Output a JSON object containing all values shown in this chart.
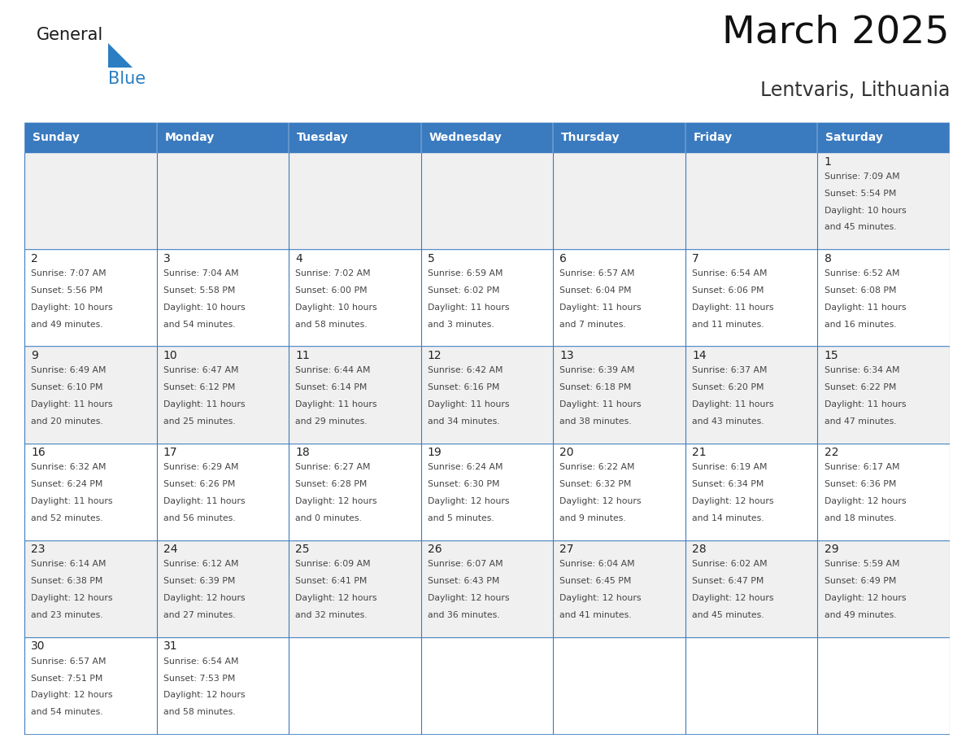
{
  "title": "March 2025",
  "subtitle": "Lentvaris, Lithuania",
  "days_of_week": [
    "Sunday",
    "Monday",
    "Tuesday",
    "Wednesday",
    "Thursday",
    "Friday",
    "Saturday"
  ],
  "header_bg": "#3a7abf",
  "header_text": "#ffffff",
  "row_bg_odd": "#f0f0f0",
  "row_bg_even": "#ffffff",
  "border_color": "#3a7abf",
  "day_num_color": "#222222",
  "text_color": "#444444",
  "logo_general_color": "#1a1a1a",
  "logo_blue_color": "#2b7ec1",
  "cal_data": [
    {
      "day": 1,
      "col": 6,
      "row": 0,
      "sunrise": "7:09 AM",
      "sunset": "5:54 PM",
      "daylight": "10 hours and 45 minutes."
    },
    {
      "day": 2,
      "col": 0,
      "row": 1,
      "sunrise": "7:07 AM",
      "sunset": "5:56 PM",
      "daylight": "10 hours and 49 minutes."
    },
    {
      "day": 3,
      "col": 1,
      "row": 1,
      "sunrise": "7:04 AM",
      "sunset": "5:58 PM",
      "daylight": "10 hours and 54 minutes."
    },
    {
      "day": 4,
      "col": 2,
      "row": 1,
      "sunrise": "7:02 AM",
      "sunset": "6:00 PM",
      "daylight": "10 hours and 58 minutes."
    },
    {
      "day": 5,
      "col": 3,
      "row": 1,
      "sunrise": "6:59 AM",
      "sunset": "6:02 PM",
      "daylight": "11 hours and 3 minutes."
    },
    {
      "day": 6,
      "col": 4,
      "row": 1,
      "sunrise": "6:57 AM",
      "sunset": "6:04 PM",
      "daylight": "11 hours and 7 minutes."
    },
    {
      "day": 7,
      "col": 5,
      "row": 1,
      "sunrise": "6:54 AM",
      "sunset": "6:06 PM",
      "daylight": "11 hours and 11 minutes."
    },
    {
      "day": 8,
      "col": 6,
      "row": 1,
      "sunrise": "6:52 AM",
      "sunset": "6:08 PM",
      "daylight": "11 hours and 16 minutes."
    },
    {
      "day": 9,
      "col": 0,
      "row": 2,
      "sunrise": "6:49 AM",
      "sunset": "6:10 PM",
      "daylight": "11 hours and 20 minutes."
    },
    {
      "day": 10,
      "col": 1,
      "row": 2,
      "sunrise": "6:47 AM",
      "sunset": "6:12 PM",
      "daylight": "11 hours and 25 minutes."
    },
    {
      "day": 11,
      "col": 2,
      "row": 2,
      "sunrise": "6:44 AM",
      "sunset": "6:14 PM",
      "daylight": "11 hours and 29 minutes."
    },
    {
      "day": 12,
      "col": 3,
      "row": 2,
      "sunrise": "6:42 AM",
      "sunset": "6:16 PM",
      "daylight": "11 hours and 34 minutes."
    },
    {
      "day": 13,
      "col": 4,
      "row": 2,
      "sunrise": "6:39 AM",
      "sunset": "6:18 PM",
      "daylight": "11 hours and 38 minutes."
    },
    {
      "day": 14,
      "col": 5,
      "row": 2,
      "sunrise": "6:37 AM",
      "sunset": "6:20 PM",
      "daylight": "11 hours and 43 minutes."
    },
    {
      "day": 15,
      "col": 6,
      "row": 2,
      "sunrise": "6:34 AM",
      "sunset": "6:22 PM",
      "daylight": "11 hours and 47 minutes."
    },
    {
      "day": 16,
      "col": 0,
      "row": 3,
      "sunrise": "6:32 AM",
      "sunset": "6:24 PM",
      "daylight": "11 hours and 52 minutes."
    },
    {
      "day": 17,
      "col": 1,
      "row": 3,
      "sunrise": "6:29 AM",
      "sunset": "6:26 PM",
      "daylight": "11 hours and 56 minutes."
    },
    {
      "day": 18,
      "col": 2,
      "row": 3,
      "sunrise": "6:27 AM",
      "sunset": "6:28 PM",
      "daylight": "12 hours and 0 minutes."
    },
    {
      "day": 19,
      "col": 3,
      "row": 3,
      "sunrise": "6:24 AM",
      "sunset": "6:30 PM",
      "daylight": "12 hours and 5 minutes."
    },
    {
      "day": 20,
      "col": 4,
      "row": 3,
      "sunrise": "6:22 AM",
      "sunset": "6:32 PM",
      "daylight": "12 hours and 9 minutes."
    },
    {
      "day": 21,
      "col": 5,
      "row": 3,
      "sunrise": "6:19 AM",
      "sunset": "6:34 PM",
      "daylight": "12 hours and 14 minutes."
    },
    {
      "day": 22,
      "col": 6,
      "row": 3,
      "sunrise": "6:17 AM",
      "sunset": "6:36 PM",
      "daylight": "12 hours and 18 minutes."
    },
    {
      "day": 23,
      "col": 0,
      "row": 4,
      "sunrise": "6:14 AM",
      "sunset": "6:38 PM",
      "daylight": "12 hours and 23 minutes."
    },
    {
      "day": 24,
      "col": 1,
      "row": 4,
      "sunrise": "6:12 AM",
      "sunset": "6:39 PM",
      "daylight": "12 hours and 27 minutes."
    },
    {
      "day": 25,
      "col": 2,
      "row": 4,
      "sunrise": "6:09 AM",
      "sunset": "6:41 PM",
      "daylight": "12 hours and 32 minutes."
    },
    {
      "day": 26,
      "col": 3,
      "row": 4,
      "sunrise": "6:07 AM",
      "sunset": "6:43 PM",
      "daylight": "12 hours and 36 minutes."
    },
    {
      "day": 27,
      "col": 4,
      "row": 4,
      "sunrise": "6:04 AM",
      "sunset": "6:45 PM",
      "daylight": "12 hours and 41 minutes."
    },
    {
      "day": 28,
      "col": 5,
      "row": 4,
      "sunrise": "6:02 AM",
      "sunset": "6:47 PM",
      "daylight": "12 hours and 45 minutes."
    },
    {
      "day": 29,
      "col": 6,
      "row": 4,
      "sunrise": "5:59 AM",
      "sunset": "6:49 PM",
      "daylight": "12 hours and 49 minutes."
    },
    {
      "day": 30,
      "col": 0,
      "row": 5,
      "sunrise": "6:57 AM",
      "sunset": "7:51 PM",
      "daylight": "12 hours and 54 minutes."
    },
    {
      "day": 31,
      "col": 1,
      "row": 5,
      "sunrise": "6:54 AM",
      "sunset": "7:53 PM",
      "daylight": "12 hours and 58 minutes."
    }
  ],
  "num_rows": 6,
  "figsize": [
    11.88,
    9.18
  ],
  "dpi": 100
}
